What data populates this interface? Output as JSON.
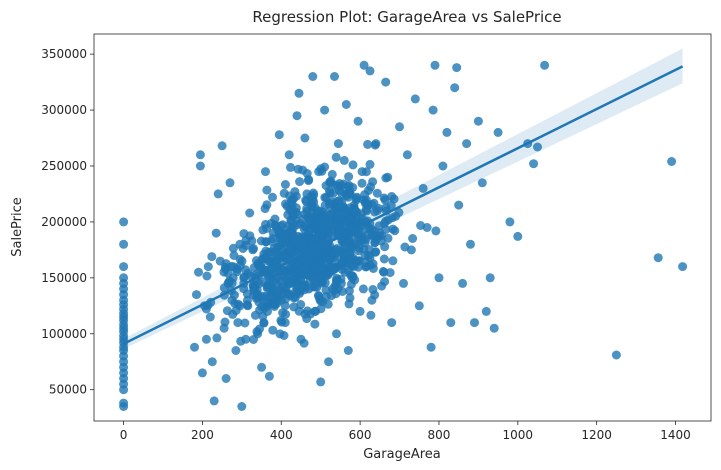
{
  "chart_data": {
    "type": "scatter",
    "title": "Regression Plot: GarageArea vs SalePrice",
    "xlabel": "GarageArea",
    "ylabel": "SalePrice",
    "xlim": [
      -75,
      1490
    ],
    "ylim": [
      22000,
      368000
    ],
    "xticks": [
      0,
      200,
      400,
      600,
      800,
      1000,
      1200,
      1400
    ],
    "yticks": [
      50000,
      100000,
      150000,
      200000,
      250000,
      300000,
      350000
    ],
    "grid": false,
    "colors": {
      "points": "#1f77b4",
      "line": "#1f77b4",
      "band": "#1f77b4"
    },
    "regression": {
      "x": [
        0,
        1418
      ],
      "y": [
        91000,
        339000
      ],
      "ci_low": [
        86500,
        324000
      ],
      "ci_high": [
        95500,
        355000
      ]
    },
    "points": [
      [
        0,
        35000
      ],
      [
        0,
        38000
      ],
      [
        0,
        50000
      ],
      [
        0,
        55000
      ],
      [
        0,
        60000
      ],
      [
        0,
        65000
      ],
      [
        0,
        70000
      ],
      [
        0,
        75000
      ],
      [
        0,
        80000
      ],
      [
        0,
        85000
      ],
      [
        0,
        88000
      ],
      [
        0,
        92000
      ],
      [
        0,
        95000
      ],
      [
        0,
        98000
      ],
      [
        0,
        102000
      ],
      [
        0,
        105000
      ],
      [
        0,
        108000
      ],
      [
        0,
        112000
      ],
      [
        0,
        115000
      ],
      [
        0,
        118000
      ],
      [
        0,
        122000
      ],
      [
        0,
        126000
      ],
      [
        0,
        130000
      ],
      [
        0,
        135000
      ],
      [
        0,
        140000
      ],
      [
        0,
        145000
      ],
      [
        0,
        150000
      ],
      [
        0,
        160000
      ],
      [
        0,
        180000
      ],
      [
        0,
        200000
      ],
      [
        180,
        88000
      ],
      [
        185,
        135000
      ],
      [
        190,
        155000
      ],
      [
        195,
        250000
      ],
      [
        195,
        260000
      ],
      [
        200,
        65000
      ],
      [
        205,
        125000
      ],
      [
        210,
        95000
      ],
      [
        215,
        160000
      ],
      [
        220,
        115000
      ],
      [
        225,
        75000
      ],
      [
        230,
        40000
      ],
      [
        235,
        190000
      ],
      [
        240,
        225000
      ],
      [
        245,
        165000
      ],
      [
        250,
        268000
      ],
      [
        255,
        105000
      ],
      [
        260,
        60000
      ],
      [
        265,
        145000
      ],
      [
        270,
        235000
      ],
      [
        275,
        130000
      ],
      [
        280,
        170000
      ],
      [
        285,
        85000
      ],
      [
        290,
        110000
      ],
      [
        295,
        180000
      ],
      [
        300,
        35000
      ],
      [
        305,
        150000
      ],
      [
        310,
        95000
      ],
      [
        315,
        125000
      ],
      [
        320,
        208000
      ],
      [
        330,
        140000
      ],
      [
        340,
        100000
      ],
      [
        345,
        160000
      ],
      [
        350,
        70000
      ],
      [
        360,
        245000
      ],
      [
        365,
        120000
      ],
      [
        370,
        62000
      ],
      [
        380,
        190000
      ],
      [
        390,
        150000
      ],
      [
        395,
        278000
      ],
      [
        400,
        130000
      ],
      [
        410,
        110000
      ],
      [
        420,
        260000
      ],
      [
        425,
        175000
      ],
      [
        430,
        205000
      ],
      [
        435,
        155000
      ],
      [
        440,
        295000
      ],
      [
        445,
        315000
      ],
      [
        450,
        95000
      ],
      [
        455,
        185000
      ],
      [
        460,
        275000
      ],
      [
        465,
        225000
      ],
      [
        470,
        140000
      ],
      [
        475,
        165000
      ],
      [
        480,
        330000
      ],
      [
        485,
        120000
      ],
      [
        490,
        210000
      ],
      [
        495,
        245000
      ],
      [
        500,
        57000
      ],
      [
        505,
        188000
      ],
      [
        510,
        300000
      ],
      [
        515,
        175000
      ],
      [
        520,
        75000
      ],
      [
        525,
        235000
      ],
      [
        530,
        140000
      ],
      [
        535,
        330000
      ],
      [
        540,
        100000
      ],
      [
        545,
        270000
      ],
      [
        550,
        195000
      ],
      [
        555,
        165000
      ],
      [
        560,
        255000
      ],
      [
        565,
        305000
      ],
      [
        570,
        85000
      ],
      [
        575,
        225000
      ],
      [
        580,
        150000
      ],
      [
        585,
        200000
      ],
      [
        590,
        180000
      ],
      [
        595,
        290000
      ],
      [
        600,
        120000
      ],
      [
        605,
        245000
      ],
      [
        610,
        340000
      ],
      [
        615,
        160000
      ],
      [
        620,
        215000
      ],
      [
        625,
        335000
      ],
      [
        630,
        130000
      ],
      [
        640,
        270000
      ],
      [
        650,
        190000
      ],
      [
        660,
        155000
      ],
      [
        665,
        325000
      ],
      [
        670,
        240000
      ],
      [
        680,
        110000
      ],
      [
        690,
        205000
      ],
      [
        700,
        285000
      ],
      [
        710,
        145000
      ],
      [
        720,
        260000
      ],
      [
        730,
        175000
      ],
      [
        740,
        310000
      ],
      [
        750,
        125000
      ],
      [
        760,
        230000
      ],
      [
        770,
        195000
      ],
      [
        780,
        88000
      ],
      [
        785,
        300000
      ],
      [
        790,
        340000
      ],
      [
        800,
        150000
      ],
      [
        810,
        250000
      ],
      [
        820,
        280000
      ],
      [
        830,
        110000
      ],
      [
        840,
        320000
      ],
      [
        845,
        338000
      ],
      [
        850,
        215000
      ],
      [
        860,
        145000
      ],
      [
        870,
        270000
      ],
      [
        880,
        180000
      ],
      [
        890,
        110000
      ],
      [
        900,
        290000
      ],
      [
        910,
        235000
      ],
      [
        920,
        120000
      ],
      [
        930,
        150000
      ],
      [
        940,
        105000
      ],
      [
        950,
        280000
      ],
      [
        980,
        200000
      ],
      [
        1000,
        187000
      ],
      [
        1025,
        270000
      ],
      [
        1040,
        252000
      ],
      [
        1050,
        267000
      ],
      [
        1068,
        340000
      ],
      [
        1250,
        81000
      ],
      [
        1356,
        168000
      ],
      [
        1390,
        254000
      ],
      [
        1418,
        160000
      ]
    ],
    "cluster": {
      "x_center": 480,
      "x_spread": 140,
      "y_intercept": 95000,
      "y_slope": 170,
      "y_spread": 38000,
      "count": 900
    }
  }
}
